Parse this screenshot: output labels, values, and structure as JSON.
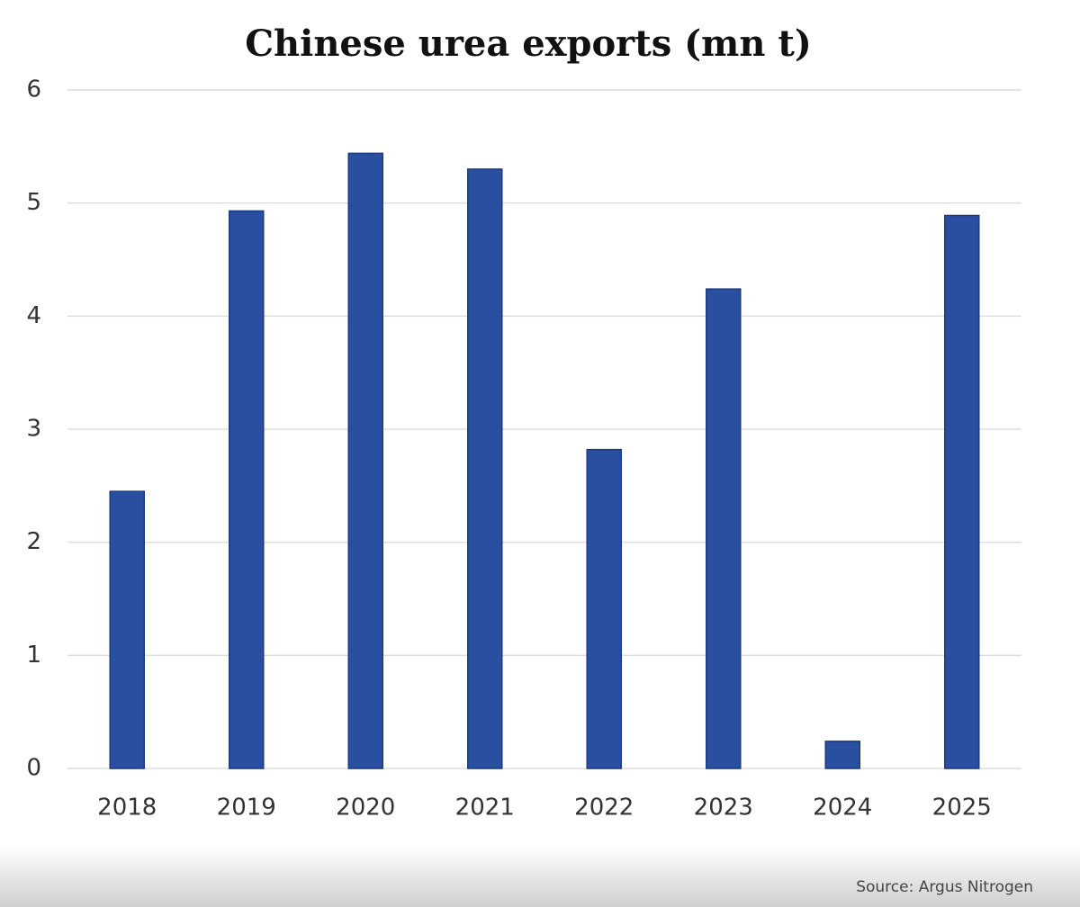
{
  "chart_data": {
    "type": "bar",
    "title": "Chinese urea exports (mn t)",
    "categories": [
      "2018",
      "2019",
      "2020",
      "2021",
      "2022",
      "2023",
      "2024",
      "2025"
    ],
    "values": [
      2.45,
      4.93,
      5.44,
      5.3,
      2.82,
      4.24,
      0.24,
      4.89
    ],
    "color": "#2a4fa0",
    "ylim": [
      0,
      6
    ],
    "yticks": [
      0,
      1,
      2,
      3,
      4,
      5,
      6
    ],
    "grid": true,
    "source": "Source: Argus Nitrogen"
  }
}
